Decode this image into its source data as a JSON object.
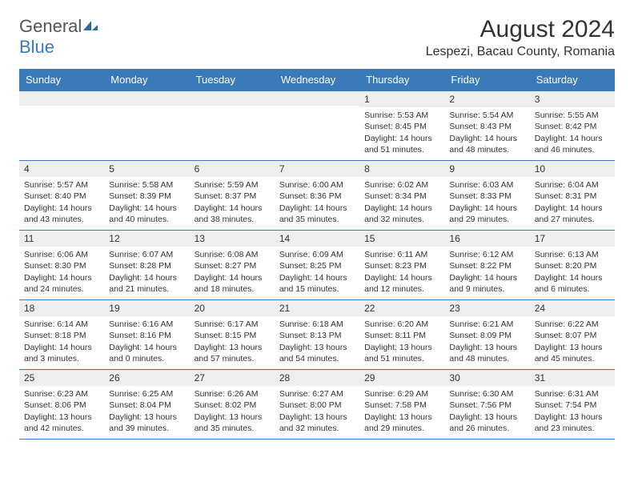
{
  "logo": {
    "text_general": "General",
    "text_blue": "Blue"
  },
  "title": "August 2024",
  "location": "Lespezi, Bacau County, Romania",
  "header_bg": "#3a7ab8",
  "daynum_bg": "#eeeeee",
  "daynames": [
    "Sunday",
    "Monday",
    "Tuesday",
    "Wednesday",
    "Thursday",
    "Friday",
    "Saturday"
  ],
  "weeks": [
    [
      null,
      null,
      null,
      null,
      {
        "n": "1",
        "sr": "Sunrise: 5:53 AM",
        "ss": "Sunset: 8:45 PM",
        "dl1": "Daylight: 14 hours",
        "dl2": "and 51 minutes."
      },
      {
        "n": "2",
        "sr": "Sunrise: 5:54 AM",
        "ss": "Sunset: 8:43 PM",
        "dl1": "Daylight: 14 hours",
        "dl2": "and 48 minutes."
      },
      {
        "n": "3",
        "sr": "Sunrise: 5:55 AM",
        "ss": "Sunset: 8:42 PM",
        "dl1": "Daylight: 14 hours",
        "dl2": "and 46 minutes."
      }
    ],
    [
      {
        "n": "4",
        "sr": "Sunrise: 5:57 AM",
        "ss": "Sunset: 8:40 PM",
        "dl1": "Daylight: 14 hours",
        "dl2": "and 43 minutes."
      },
      {
        "n": "5",
        "sr": "Sunrise: 5:58 AM",
        "ss": "Sunset: 8:39 PM",
        "dl1": "Daylight: 14 hours",
        "dl2": "and 40 minutes."
      },
      {
        "n": "6",
        "sr": "Sunrise: 5:59 AM",
        "ss": "Sunset: 8:37 PM",
        "dl1": "Daylight: 14 hours",
        "dl2": "and 38 minutes."
      },
      {
        "n": "7",
        "sr": "Sunrise: 6:00 AM",
        "ss": "Sunset: 8:36 PM",
        "dl1": "Daylight: 14 hours",
        "dl2": "and 35 minutes."
      },
      {
        "n": "8",
        "sr": "Sunrise: 6:02 AM",
        "ss": "Sunset: 8:34 PM",
        "dl1": "Daylight: 14 hours",
        "dl2": "and 32 minutes."
      },
      {
        "n": "9",
        "sr": "Sunrise: 6:03 AM",
        "ss": "Sunset: 8:33 PM",
        "dl1": "Daylight: 14 hours",
        "dl2": "and 29 minutes."
      },
      {
        "n": "10",
        "sr": "Sunrise: 6:04 AM",
        "ss": "Sunset: 8:31 PM",
        "dl1": "Daylight: 14 hours",
        "dl2": "and 27 minutes."
      }
    ],
    [
      {
        "n": "11",
        "sr": "Sunrise: 6:06 AM",
        "ss": "Sunset: 8:30 PM",
        "dl1": "Daylight: 14 hours",
        "dl2": "and 24 minutes."
      },
      {
        "n": "12",
        "sr": "Sunrise: 6:07 AM",
        "ss": "Sunset: 8:28 PM",
        "dl1": "Daylight: 14 hours",
        "dl2": "and 21 minutes."
      },
      {
        "n": "13",
        "sr": "Sunrise: 6:08 AM",
        "ss": "Sunset: 8:27 PM",
        "dl1": "Daylight: 14 hours",
        "dl2": "and 18 minutes."
      },
      {
        "n": "14",
        "sr": "Sunrise: 6:09 AM",
        "ss": "Sunset: 8:25 PM",
        "dl1": "Daylight: 14 hours",
        "dl2": "and 15 minutes."
      },
      {
        "n": "15",
        "sr": "Sunrise: 6:11 AM",
        "ss": "Sunset: 8:23 PM",
        "dl1": "Daylight: 14 hours",
        "dl2": "and 12 minutes."
      },
      {
        "n": "16",
        "sr": "Sunrise: 6:12 AM",
        "ss": "Sunset: 8:22 PM",
        "dl1": "Daylight: 14 hours",
        "dl2": "and 9 minutes."
      },
      {
        "n": "17",
        "sr": "Sunrise: 6:13 AM",
        "ss": "Sunset: 8:20 PM",
        "dl1": "Daylight: 14 hours",
        "dl2": "and 6 minutes."
      }
    ],
    [
      {
        "n": "18",
        "sr": "Sunrise: 6:14 AM",
        "ss": "Sunset: 8:18 PM",
        "dl1": "Daylight: 14 hours",
        "dl2": "and 3 minutes."
      },
      {
        "n": "19",
        "sr": "Sunrise: 6:16 AM",
        "ss": "Sunset: 8:16 PM",
        "dl1": "Daylight: 14 hours",
        "dl2": "and 0 minutes."
      },
      {
        "n": "20",
        "sr": "Sunrise: 6:17 AM",
        "ss": "Sunset: 8:15 PM",
        "dl1": "Daylight: 13 hours",
        "dl2": "and 57 minutes."
      },
      {
        "n": "21",
        "sr": "Sunrise: 6:18 AM",
        "ss": "Sunset: 8:13 PM",
        "dl1": "Daylight: 13 hours",
        "dl2": "and 54 minutes."
      },
      {
        "n": "22",
        "sr": "Sunrise: 6:20 AM",
        "ss": "Sunset: 8:11 PM",
        "dl1": "Daylight: 13 hours",
        "dl2": "and 51 minutes."
      },
      {
        "n": "23",
        "sr": "Sunrise: 6:21 AM",
        "ss": "Sunset: 8:09 PM",
        "dl1": "Daylight: 13 hours",
        "dl2": "and 48 minutes."
      },
      {
        "n": "24",
        "sr": "Sunrise: 6:22 AM",
        "ss": "Sunset: 8:07 PM",
        "dl1": "Daylight: 13 hours",
        "dl2": "and 45 minutes."
      }
    ],
    [
      {
        "n": "25",
        "sr": "Sunrise: 6:23 AM",
        "ss": "Sunset: 8:06 PM",
        "dl1": "Daylight: 13 hours",
        "dl2": "and 42 minutes."
      },
      {
        "n": "26",
        "sr": "Sunrise: 6:25 AM",
        "ss": "Sunset: 8:04 PM",
        "dl1": "Daylight: 13 hours",
        "dl2": "and 39 minutes."
      },
      {
        "n": "27",
        "sr": "Sunrise: 6:26 AM",
        "ss": "Sunset: 8:02 PM",
        "dl1": "Daylight: 13 hours",
        "dl2": "and 35 minutes."
      },
      {
        "n": "28",
        "sr": "Sunrise: 6:27 AM",
        "ss": "Sunset: 8:00 PM",
        "dl1": "Daylight: 13 hours",
        "dl2": "and 32 minutes."
      },
      {
        "n": "29",
        "sr": "Sunrise: 6:29 AM",
        "ss": "Sunset: 7:58 PM",
        "dl1": "Daylight: 13 hours",
        "dl2": "and 29 minutes."
      },
      {
        "n": "30",
        "sr": "Sunrise: 6:30 AM",
        "ss": "Sunset: 7:56 PM",
        "dl1": "Daylight: 13 hours",
        "dl2": "and 26 minutes."
      },
      {
        "n": "31",
        "sr": "Sunrise: 6:31 AM",
        "ss": "Sunset: 7:54 PM",
        "dl1": "Daylight: 13 hours",
        "dl2": "and 23 minutes."
      }
    ]
  ]
}
